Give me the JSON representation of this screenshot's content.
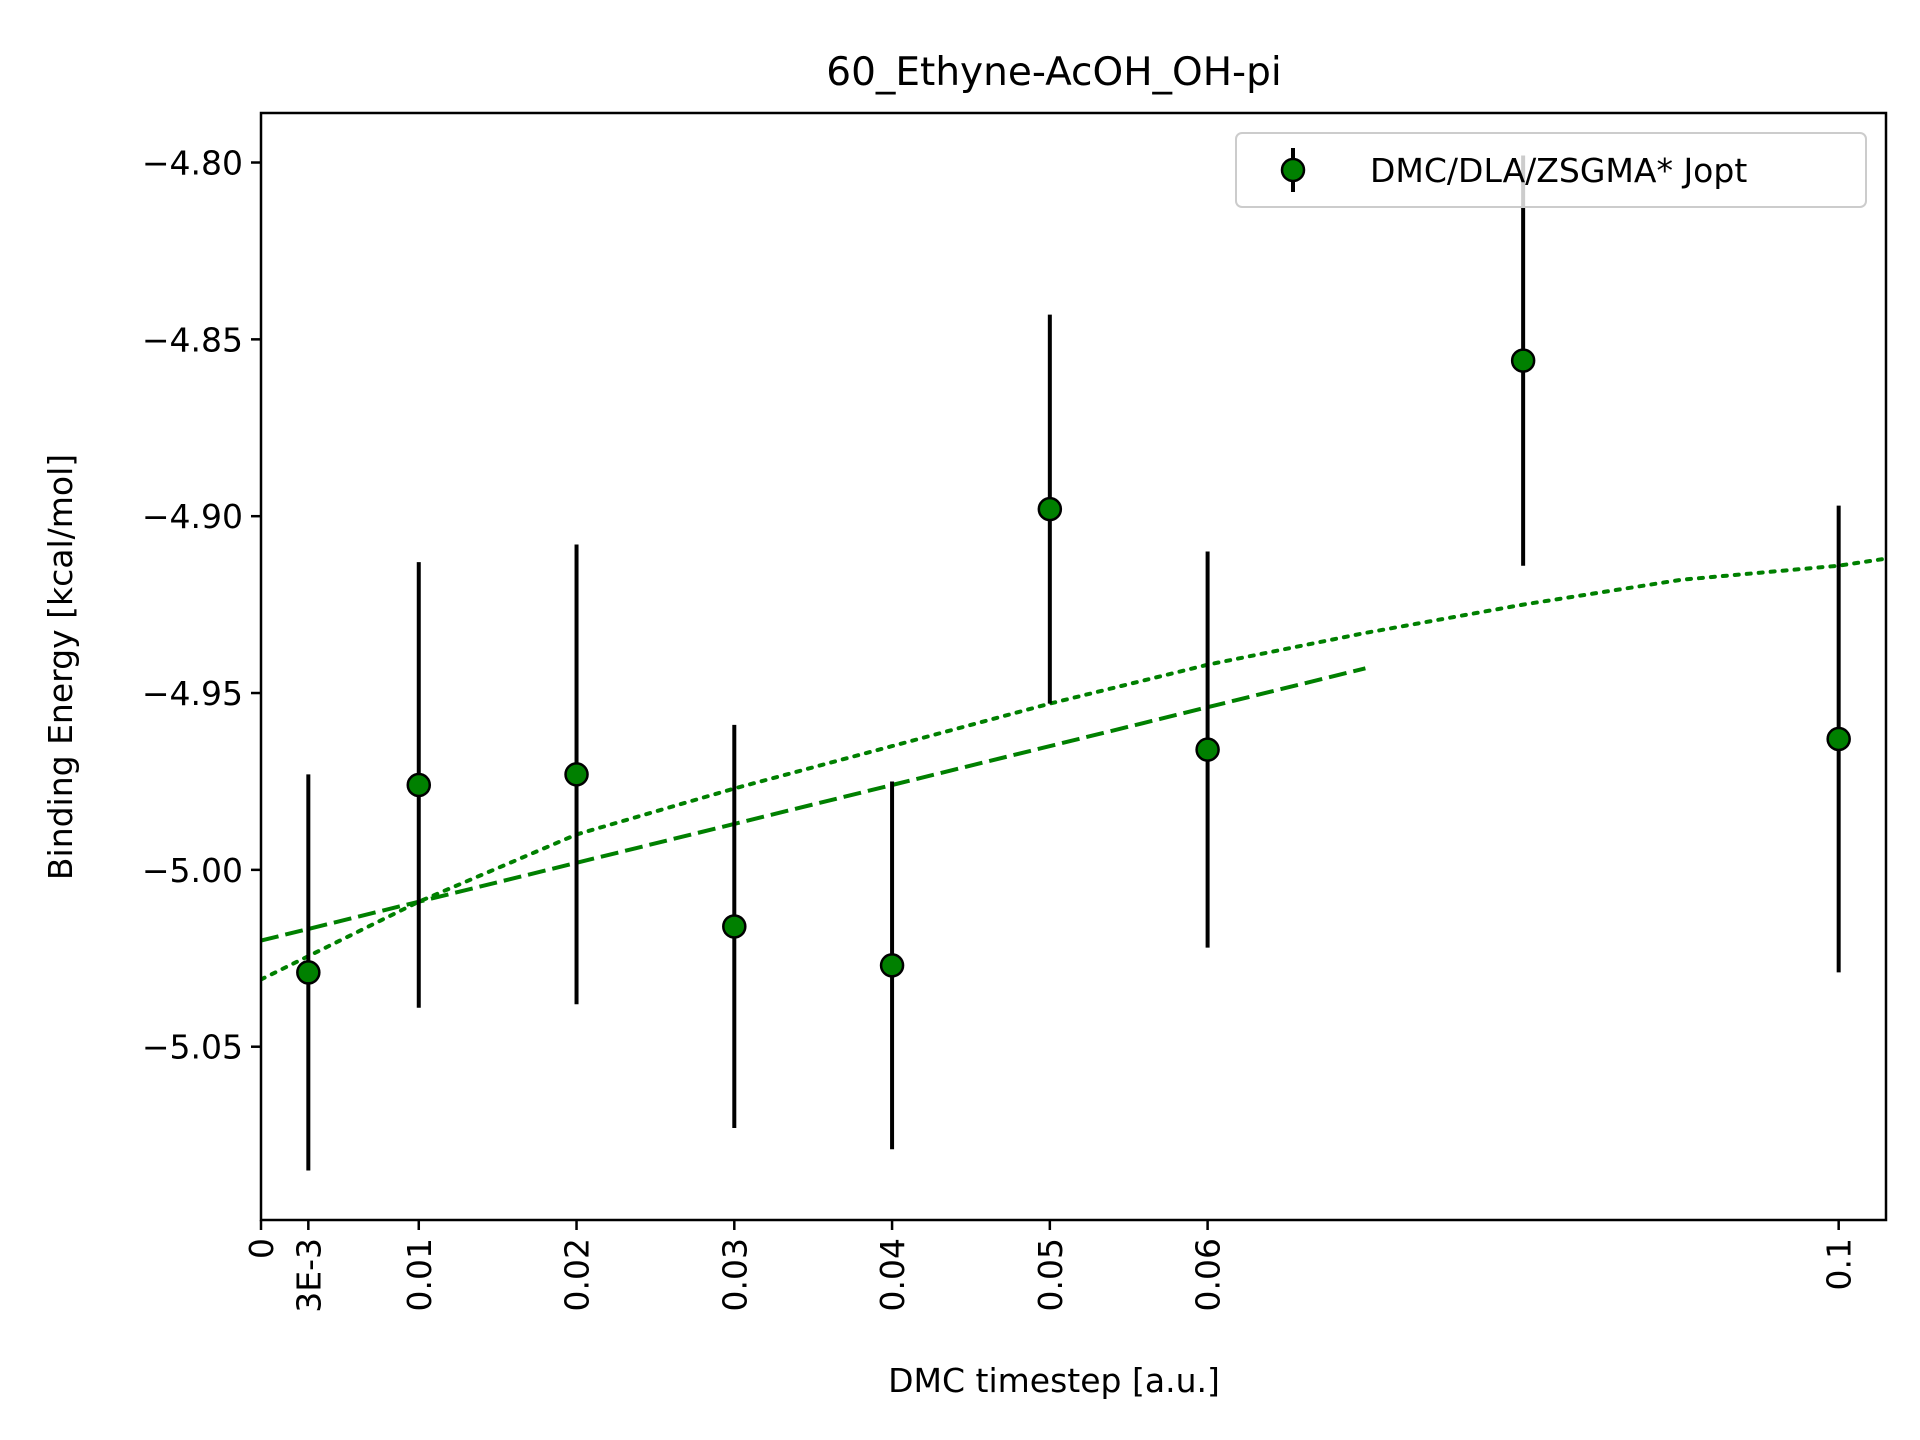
{
  "chart_data": {
    "type": "scatter",
    "title": "60_Ethyne-AcOH_OH-pi",
    "xlabel": "DMC timestep [a.u.]",
    "ylabel": "Binding Energy [kcal/mol]",
    "xlim": [
      0,
      0.103
    ],
    "ylim": [
      -5.099,
      -4.786
    ],
    "xticks": [
      {
        "value": 0,
        "label": "0"
      },
      {
        "value": 0.003,
        "label": "3E-3"
      },
      {
        "value": 0.01,
        "label": "0.01"
      },
      {
        "value": 0.02,
        "label": "0.02"
      },
      {
        "value": 0.03,
        "label": "0.03"
      },
      {
        "value": 0.04,
        "label": "0.04"
      },
      {
        "value": 0.05,
        "label": "0.05"
      },
      {
        "value": 0.06,
        "label": "0.06"
      },
      {
        "value": 0.1,
        "label": "0.1"
      }
    ],
    "yticks": [
      {
        "value": -4.8,
        "label": "−4.80"
      },
      {
        "value": -4.85,
        "label": "−4.85"
      },
      {
        "value": -4.9,
        "label": "−4.90"
      },
      {
        "value": -4.95,
        "label": "−4.95"
      },
      {
        "value": -5.0,
        "label": "−5.00"
      },
      {
        "value": -5.05,
        "label": "−5.05"
      }
    ],
    "grid": false,
    "legend_position": "top-right",
    "series": [
      {
        "name": "DMC/DLA/ZSGMA* Jopt",
        "color": "#008000",
        "edge_color": "#000000",
        "errorbar_color": "#000000",
        "points": [
          {
            "x": 0.003,
            "y": -5.029,
            "err": 0.056
          },
          {
            "x": 0.01,
            "y": -4.976,
            "err": 0.063
          },
          {
            "x": 0.02,
            "y": -4.973,
            "err": 0.065
          },
          {
            "x": 0.03,
            "y": -5.016,
            "err": 0.057
          },
          {
            "x": 0.04,
            "y": -5.027,
            "err": 0.052
          },
          {
            "x": 0.05,
            "y": -4.898,
            "err": 0.055
          },
          {
            "x": 0.06,
            "y": -4.966,
            "err": 0.056
          },
          {
            "x": 0.08,
            "y": -4.856,
            "err": 0.058
          },
          {
            "x": 0.1,
            "y": -4.963,
            "err": 0.066
          }
        ]
      }
    ],
    "fit_lines": [
      {
        "style": "dashed",
        "color": "#008000",
        "points": [
          [
            0,
            -5.02
          ],
          [
            0.07,
            -4.943
          ]
        ]
      },
      {
        "style": "dotted",
        "color": "#008000",
        "points": [
          [
            0,
            -5.031
          ],
          [
            0.005,
            -5.02
          ],
          [
            0.01,
            -5.009
          ],
          [
            0.02,
            -4.99
          ],
          [
            0.03,
            -4.977
          ],
          [
            0.04,
            -4.965
          ],
          [
            0.05,
            -4.953
          ],
          [
            0.06,
            -4.942
          ],
          [
            0.07,
            -4.933
          ],
          [
            0.08,
            -4.925
          ],
          [
            0.09,
            -4.918
          ],
          [
            0.1,
            -4.914
          ],
          [
            0.103,
            -4.912
          ]
        ]
      }
    ]
  }
}
